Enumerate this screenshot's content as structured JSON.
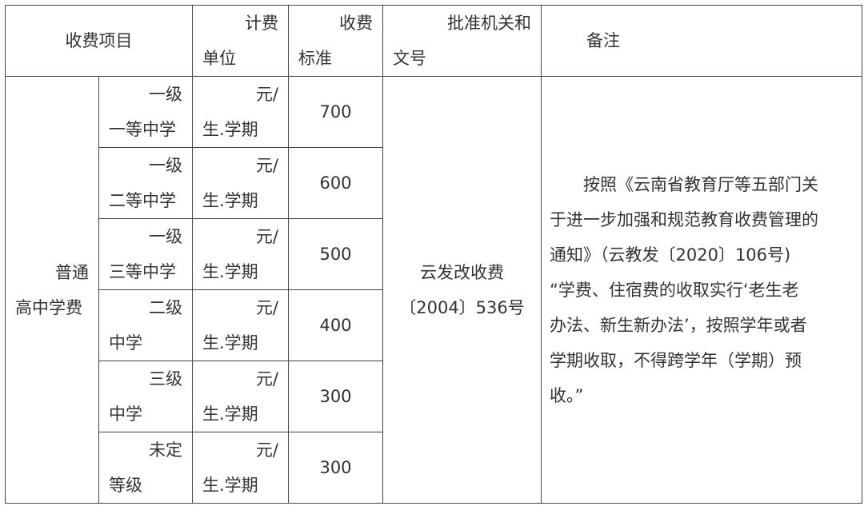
{
  "header": {
    "item": "收费项目",
    "unit": [
      "计费",
      "单位"
    ],
    "standard": [
      "收费",
      "标准"
    ],
    "approval": [
      "批准机关和",
      "文号"
    ],
    "remark": "备注"
  },
  "category": [
    "普通",
    "高中学费"
  ],
  "rows": [
    {
      "level": [
        "一级",
        "一等中学"
      ],
      "unit": [
        "元/",
        "生.学期"
      ],
      "fee": "700"
    },
    {
      "level": [
        "一级",
        "二等中学"
      ],
      "unit": [
        "元/",
        "生.学期"
      ],
      "fee": "600"
    },
    {
      "level": [
        "一级",
        "三等中学"
      ],
      "unit": [
        "元/",
        "生.学期"
      ],
      "fee": "500"
    },
    {
      "level": [
        "二级",
        "中学"
      ],
      "unit": [
        "元/",
        "生.学期"
      ],
      "fee": "400"
    },
    {
      "level": [
        "三级",
        "中学"
      ],
      "unit": [
        "元/",
        "生.学期"
      ],
      "fee": "300"
    },
    {
      "level": [
        "未定",
        "等级"
      ],
      "unit": [
        "元/",
        "生.学期"
      ],
      "fee": "300"
    }
  ],
  "approval": [
    "云发改收费",
    "〔2004〕536号"
  ],
  "remark": [
    "按照《云南省教育厅等五部门关",
    "于进一步加强和规范教育收费管理的",
    "通知》（云教发〔2020〕106号)",
    "“学费、住宿费的收取实行‘老生老",
    "办法、新生新办法’，按照学年或者",
    "学期收取，不得跨学年（学期）预",
    "收。”"
  ]
}
